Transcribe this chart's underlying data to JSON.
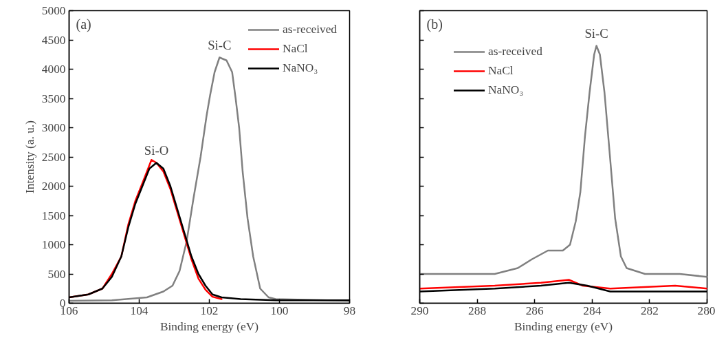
{
  "chart_data": [
    {
      "type": "line",
      "xlabel": "Binding energy (eV)",
      "ylabel": "Intensity (a. u.)",
      "xlim": [
        106,
        98
      ],
      "xticks": [
        106,
        104,
        102,
        100,
        98
      ],
      "ylim": [
        0,
        5000
      ],
      "yticks": [
        0,
        500,
        1000,
        1500,
        2000,
        2500,
        3000,
        3500,
        4000,
        4500,
        5000
      ],
      "legend": "top right",
      "annotations": [
        "(a)",
        {
          "text": "Si-O",
          "x": 103.51,
          "y": 2400
        },
        {
          "text": "Si-C",
          "x": 101.71,
          "y": 4200
        }
      ],
      "series": [
        {
          "name": "as-received",
          "color": "#808080",
          "x": [
            106,
            104.78,
            103.78,
            103.31,
            103.05,
            102.85,
            102.65,
            102.45,
            102.25,
            102.08,
            101.98,
            101.85,
            101.71,
            101.51,
            101.35,
            101.25,
            101.15,
            101.05,
            100.91,
            100.75,
            100.55,
            100.31,
            100.11,
            98
          ],
          "values": [
            40,
            50,
            100,
            200,
            300,
            550,
            1050,
            1800,
            2500,
            3200,
            3550,
            3950,
            4200,
            4150,
            3950,
            3500,
            3000,
            2250,
            1450,
            800,
            250,
            100,
            70,
            40
          ]
        },
        {
          "name": "NaCl",
          "color": "#ff0000",
          "x": [
            106,
            105.45,
            105.05,
            104.78,
            104.51,
            104.31,
            104.11,
            103.91,
            103.65,
            103.51,
            103.31,
            103.11,
            102.91,
            102.71,
            102.51,
            102.31,
            102.11,
            101.91,
            101.65
          ],
          "values": [
            100,
            150,
            250,
            500,
            800,
            1350,
            1750,
            2050,
            2450,
            2400,
            2250,
            1950,
            1550,
            1150,
            750,
            420,
            230,
            110,
            70
          ]
        },
        {
          "name": "NaNO₃",
          "color": "#000000",
          "x": [
            106,
            105.45,
            105.05,
            104.78,
            104.51,
            104.31,
            104.11,
            103.91,
            103.71,
            103.51,
            103.31,
            103.11,
            102.91,
            102.71,
            102.51,
            102.31,
            102.11,
            101.91,
            101.65,
            101.11,
            100.1,
            98
          ],
          "values": [
            100,
            150,
            250,
            450,
            800,
            1300,
            1700,
            2000,
            2300,
            2400,
            2300,
            2000,
            1600,
            1200,
            800,
            500,
            300,
            150,
            100,
            70,
            50,
            50
          ]
        }
      ]
    },
    {
      "type": "line",
      "xlabel": "Binding energy (eV)",
      "xlim": [
        290,
        280
      ],
      "xticks": [
        290,
        288,
        286,
        284,
        282,
        280
      ],
      "ylim": [
        0,
        5000
      ],
      "yticks": [
        0,
        500,
        1000,
        1500,
        2000,
        2500,
        3000,
        3500,
        4000,
        4500,
        5000
      ],
      "tick_labels": "x",
      "legend": "top left",
      "annotations": [
        "(b)",
        {
          "text": "Si-C",
          "x": 283.85,
          "y": 4400
        }
      ],
      "series": [
        {
          "name": "as-received",
          "color": "#808080",
          "x": [
            290,
            289.0,
            287.39,
            286.59,
            286.1,
            285.54,
            285.02,
            284.77,
            284.57,
            284.41,
            284.25,
            284.09,
            283.93,
            283.85,
            283.73,
            283.57,
            283.37,
            283.2,
            283.0,
            282.8,
            282.16,
            280.95,
            280
          ],
          "values": [
            500,
            500,
            500,
            600,
            750,
            900,
            900,
            1000,
            1400,
            1900,
            2850,
            3600,
            4250,
            4400,
            4250,
            3600,
            2450,
            1450,
            800,
            600,
            500,
            500,
            450
          ]
        },
        {
          "name": "NaCl",
          "color": "#ff0000",
          "x": [
            290,
            287.39,
            285.78,
            284.81,
            284.33,
            283.37,
            281.11,
            280
          ],
          "values": [
            250,
            300,
            350,
            400,
            300,
            250,
            300,
            250
          ]
        },
        {
          "name": "NaNO₃",
          "color": "#000000",
          "x": [
            290,
            287.39,
            285.78,
            284.81,
            284.17,
            283.37,
            280
          ],
          "values": [
            200,
            250,
            300,
            350,
            300,
            200,
            200
          ]
        }
      ]
    }
  ]
}
